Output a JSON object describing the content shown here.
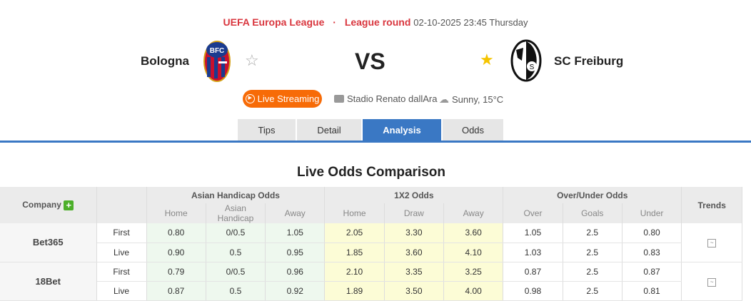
{
  "match": {
    "competition": "UEFA Europa League",
    "separator": "·",
    "round": "League round",
    "datetime": "02-10-2025 23:45 Thursday",
    "home": {
      "name": "Bologna",
      "favorite": false
    },
    "away": {
      "name": "SC Freiburg",
      "favorite": true
    },
    "vs": "VS",
    "live_label": "Live Streaming",
    "venue": "Stadio Renato dallAra",
    "weather": "Sunny, 15°C"
  },
  "tabs": [
    {
      "label": "Tips"
    },
    {
      "label": "Detail"
    },
    {
      "label": "Analysis",
      "active": true
    },
    {
      "label": "Odds"
    }
  ],
  "section_title": "Live Odds Comparison",
  "table": {
    "groups": {
      "company": "Company",
      "ah": "Asian Handicap Odds",
      "x2": "1X2 Odds",
      "ou": "Over/Under Odds",
      "trends": "Trends"
    },
    "sub": [
      "Home",
      "Asian Handicap",
      "Away",
      "Home",
      "Draw",
      "Away",
      "Over",
      "Goals",
      "Under"
    ],
    "companies": [
      {
        "name": "Bet365",
        "rows": [
          {
            "type": "First",
            "vals": [
              "0.80",
              "0/0.5",
              "1.05",
              "2.05",
              "3.30",
              "3.60",
              "1.05",
              "2.5",
              "0.80"
            ]
          },
          {
            "type": "Live",
            "vals": [
              "0.90",
              "0.5",
              "0.95",
              "1.85",
              "3.60",
              "4.10",
              "1.03",
              "2.5",
              "0.83"
            ]
          }
        ]
      },
      {
        "name": "18Bet",
        "rows": [
          {
            "type": "First",
            "vals": [
              "0.79",
              "0/0.5",
              "0.96",
              "2.10",
              "3.35",
              "3.25",
              "0.87",
              "2.5",
              "0.87"
            ]
          },
          {
            "type": "Live",
            "vals": [
              "0.87",
              "0.5",
              "0.92",
              "1.89",
              "3.50",
              "4.00",
              "0.98",
              "2.5",
              "0.81"
            ]
          }
        ]
      }
    ]
  },
  "colors": {
    "accent": "#3a78c4",
    "live": "#f76b07",
    "league": "#d9363e"
  }
}
